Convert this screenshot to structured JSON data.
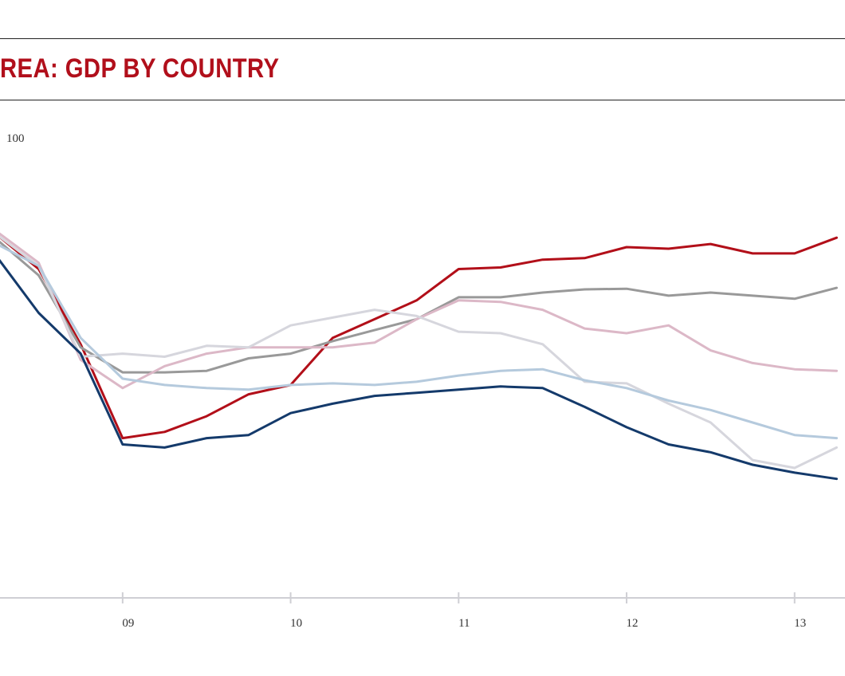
{
  "header": {
    "title": "REA: GDP BY COUNTRY",
    "title_color": "#b10f1b"
  },
  "chart_data": {
    "type": "line",
    "title": "REA: GDP BY COUNTRY",
    "y_unit_label": "100",
    "x_tick_labels": [
      "09",
      "10",
      "11",
      "12",
      "13"
    ],
    "x_tick_positions": [
      2009,
      2010,
      2011,
      2012,
      2013
    ],
    "x": [
      2008.0,
      2008.25,
      2008.5,
      2008.75,
      2009.0,
      2009.25,
      2009.5,
      2009.75,
      2010.0,
      2010.25,
      2010.5,
      2010.75,
      2011.0,
      2011.25,
      2011.5,
      2011.75,
      2012.0,
      2012.25,
      2012.5,
      2012.75,
      2013.0,
      2013.25
    ],
    "xlim": [
      2008.27,
      2013.3
    ],
    "ylim": [
      89,
      103
    ],
    "grid": false,
    "legend": "none",
    "series": [
      {
        "color": "#b20f19",
        "values": [
          100.9,
          100.6,
          99.5,
          97.1,
          94.1,
          94.3,
          94.8,
          95.5,
          95.8,
          97.3,
          97.9,
          98.5,
          99.5,
          99.55,
          99.8,
          99.85,
          100.2,
          100.15,
          100.3,
          100.0,
          100.0,
          100.5
        ]
      },
      {
        "color": "#999999",
        "values": [
          100.7,
          100.45,
          99.3,
          97.0,
          96.2,
          96.2,
          96.25,
          96.65,
          96.8,
          97.2,
          97.55,
          97.9,
          98.6,
          98.6,
          98.75,
          98.85,
          98.87,
          98.65,
          98.75,
          98.65,
          98.55,
          98.9
        ]
      },
      {
        "color": "#dcb8c7",
        "values": [
          100.7,
          100.7,
          99.7,
          96.6,
          95.7,
          96.4,
          96.8,
          97.0,
          97.0,
          97.0,
          97.15,
          97.9,
          98.5,
          98.45,
          98.2,
          97.6,
          97.45,
          97.7,
          96.9,
          96.5,
          96.3,
          96.25
        ]
      },
      {
        "color": "#d6d6dd",
        "values": [
          100.5,
          100.6,
          99.6,
          96.7,
          96.8,
          96.7,
          97.05,
          97.0,
          97.7,
          97.95,
          98.2,
          98.0,
          97.5,
          97.45,
          97.1,
          95.9,
          95.85,
          95.2,
          94.6,
          93.4,
          93.15,
          93.8
        ]
      },
      {
        "color": "#b5cadd",
        "values": [
          100.9,
          100.3,
          99.6,
          97.3,
          96.0,
          95.8,
          95.7,
          95.65,
          95.8,
          95.85,
          95.8,
          95.9,
          96.1,
          96.25,
          96.3,
          95.95,
          95.7,
          95.3,
          95.0,
          94.6,
          94.2,
          94.1
        ]
      },
      {
        "color": "#143a6b",
        "values": [
          100.9,
          99.9,
          98.1,
          96.8,
          93.9,
          93.8,
          94.1,
          94.2,
          94.9,
          95.2,
          95.45,
          95.55,
          95.65,
          95.75,
          95.7,
          95.1,
          94.45,
          93.9,
          93.65,
          93.25,
          93.0,
          92.8
        ]
      }
    ]
  }
}
